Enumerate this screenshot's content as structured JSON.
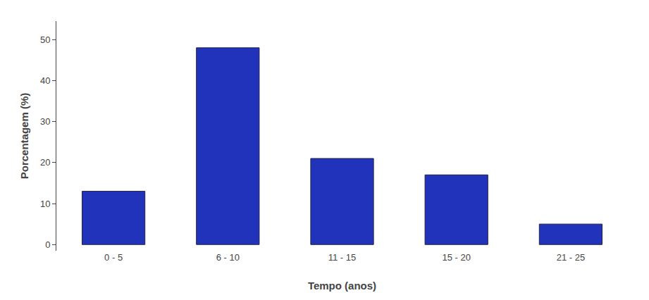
{
  "chart_data": {
    "type": "bar",
    "xlabel": "Tempo (anos)",
    "ylabel": "Porcentagem (%)",
    "categories": [
      "0 - 5",
      "6 - 10",
      "11 - 15",
      "15 - 20",
      "21 - 25"
    ],
    "values": [
      13,
      48,
      21,
      17,
      5
    ],
    "color": "#2233BB",
    "ylim": [
      -1.5,
      54.5
    ],
    "yticks": [
      0,
      10,
      20,
      30,
      40,
      50
    ],
    "grid": false
  }
}
